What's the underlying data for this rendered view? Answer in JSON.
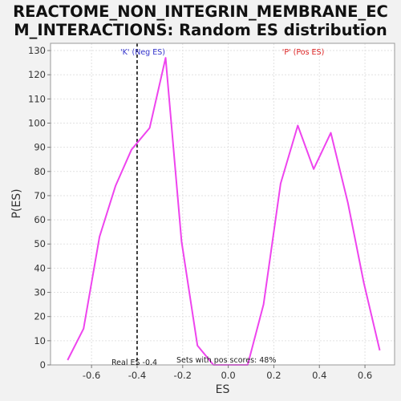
{
  "chart_data": {
    "type": "line",
    "title": "REACTOME_NON_INTEGRIN_MEMBRANE_ECM_INTERACTIONS: Random ES distribution",
    "title_lines": [
      "REACTOME_NON_INTEGRIN_MEMBRANE_EC",
      "M_INTERACTIONS: Random ES distribution"
    ],
    "xlabel": "ES",
    "ylabel": "P(ES)",
    "xlim": [
      -0.78,
      0.73
    ],
    "ylim": [
      0,
      133
    ],
    "x_ticks": [
      -0.6,
      -0.4,
      -0.2,
      0.0,
      0.2,
      0.4,
      0.6
    ],
    "x_tick_labels": [
      "-0.6",
      "-0.4",
      "-0.2",
      "0.0",
      "0.2",
      "0.4",
      "0.6"
    ],
    "y_ticks": [
      0,
      10,
      20,
      30,
      40,
      50,
      60,
      70,
      80,
      90,
      100,
      110,
      120,
      130
    ],
    "grid": true,
    "series": [
      {
        "color": "#ee44ee",
        "x": [
          -0.705,
          -0.635,
          -0.565,
          -0.495,
          -0.425,
          -0.345,
          -0.275,
          -0.205,
          -0.135,
          -0.065,
          0.005,
          0.085,
          0.155,
          0.23,
          0.305,
          0.375,
          0.45,
          0.525,
          0.595,
          0.665
        ],
        "y": [
          2,
          15,
          53,
          74,
          89,
          98,
          127,
          51,
          8,
          0,
          0,
          0,
          25,
          75,
          99,
          81,
          96,
          67,
          34,
          6
        ]
      }
    ],
    "real_es": -0.4,
    "annotations": {
      "neg_label": "'K' (Neg ES)",
      "pos_label": "'P' (Pos ES)",
      "real_es_label": "Real ES -0.4",
      "pos_scores_label": "Sets with pos scores: 48%",
      "neg_color": "#3333cc",
      "pos_color": "#dd2222"
    }
  }
}
